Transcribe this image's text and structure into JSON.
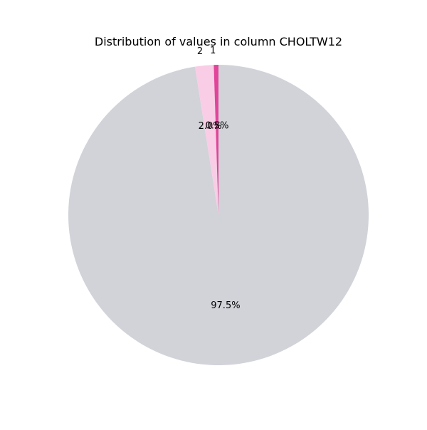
{
  "chart_data": {
    "type": "pie",
    "title": "Distribution of values in column CHOLTW12",
    "slices": [
      {
        "label": "",
        "value": 97.5,
        "pct_label": "97.5%",
        "color": "#d1d3d9"
      },
      {
        "label": "2",
        "value": 2.0,
        "pct_label": "2.0%",
        "color": "#f9cde6"
      },
      {
        "label": "1",
        "value": 0.5,
        "pct_label": "0.5%",
        "color": "#e2449a"
      }
    ],
    "start_angle": 90,
    "counterclock": false
  }
}
